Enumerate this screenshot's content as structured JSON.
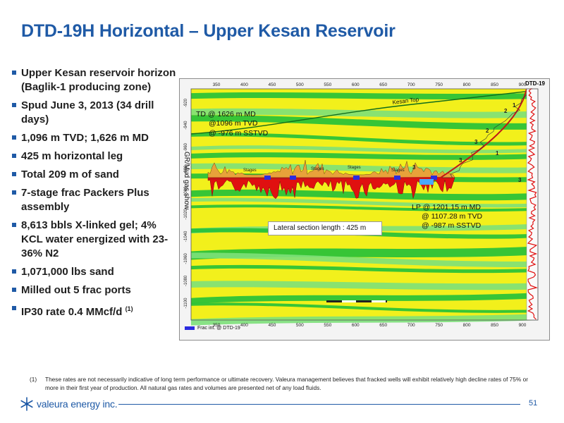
{
  "slide": {
    "title": "DTD-19H Horizontal – Upper Kesan Reservoir",
    "page_number": "51",
    "brand_color": "#1f5aa6"
  },
  "bullets": [
    {
      "text": "Upper Kesan reservoir horizon (Baglik-1 producing zone)"
    },
    {
      "text": "Spud June 3, 2013 (34 drill days)"
    },
    {
      "text": "1,096 m TVD; 1,626 m MD"
    },
    {
      "text": "425 m horizontal leg"
    },
    {
      "text": "Total 209 m of sand"
    },
    {
      "text": "7-stage frac Packers Plus assembly"
    },
    {
      "text": "8,613 bbls X-linked gel; 4% KCL water energized with 23-36% N2"
    },
    {
      "text": "1,071,000 lbs sand"
    },
    {
      "text": "Milled out 5 frac ports"
    },
    {
      "text": "IP30 rate 0.4 MMcf/d",
      "superscript": "(1)"
    }
  ],
  "cross_section": {
    "x_ticks_top": [
      "350",
      "400",
      "450",
      "500",
      "550",
      "600",
      "650",
      "700",
      "750",
      "800",
      "850",
      "900"
    ],
    "x_ticks_bottom": [
      "350",
      "400",
      "450",
      "500",
      "550",
      "600",
      "650",
      "700",
      "750",
      "800",
      "850",
      "900"
    ],
    "y_ticks": [
      "-920",
      "-940",
      "-960",
      "-980",
      "-1000",
      "-1020",
      "-1040",
      "-1060",
      "-1080",
      "-1100"
    ],
    "td_label": [
      "TD @ 1626 m MD",
      "@1096 m TVD",
      "@ -976 m SSTVD"
    ],
    "lp_label": [
      "LP @ 1201.15 m MD",
      "@ 1107.28 m TVD",
      "@ -987 m SSTVD"
    ],
    "lateral_length": "Lateral section length : 425 m",
    "gr_label": "GR/Mud gas show",
    "kesan_top": "Kesan Top",
    "well_name": "DTD-19",
    "stage_label": "Stages",
    "stage_numbers": [
      "3",
      "3",
      "3",
      "2",
      "2",
      "1",
      "1",
      "3"
    ],
    "legend": "Frac int. @ DTD-19",
    "colors": {
      "yellow": "#f2f01c",
      "green": "#22c03a",
      "light_green": "#7de07a",
      "red": "#e01010",
      "blue": "#2b2bdf",
      "orange": "#e8a23a"
    }
  },
  "footnote": {
    "mark": "(1)",
    "text": "These rates are not necessarily indicative of long term performance or ultimate recovery. Valeura management believes that fracked wells will exhibit relatively high decline rates of 75% or more in their first year of production. All natural gas rates and volumes are presented net of any load fluids."
  },
  "logo": {
    "text": "valeura energy inc."
  }
}
